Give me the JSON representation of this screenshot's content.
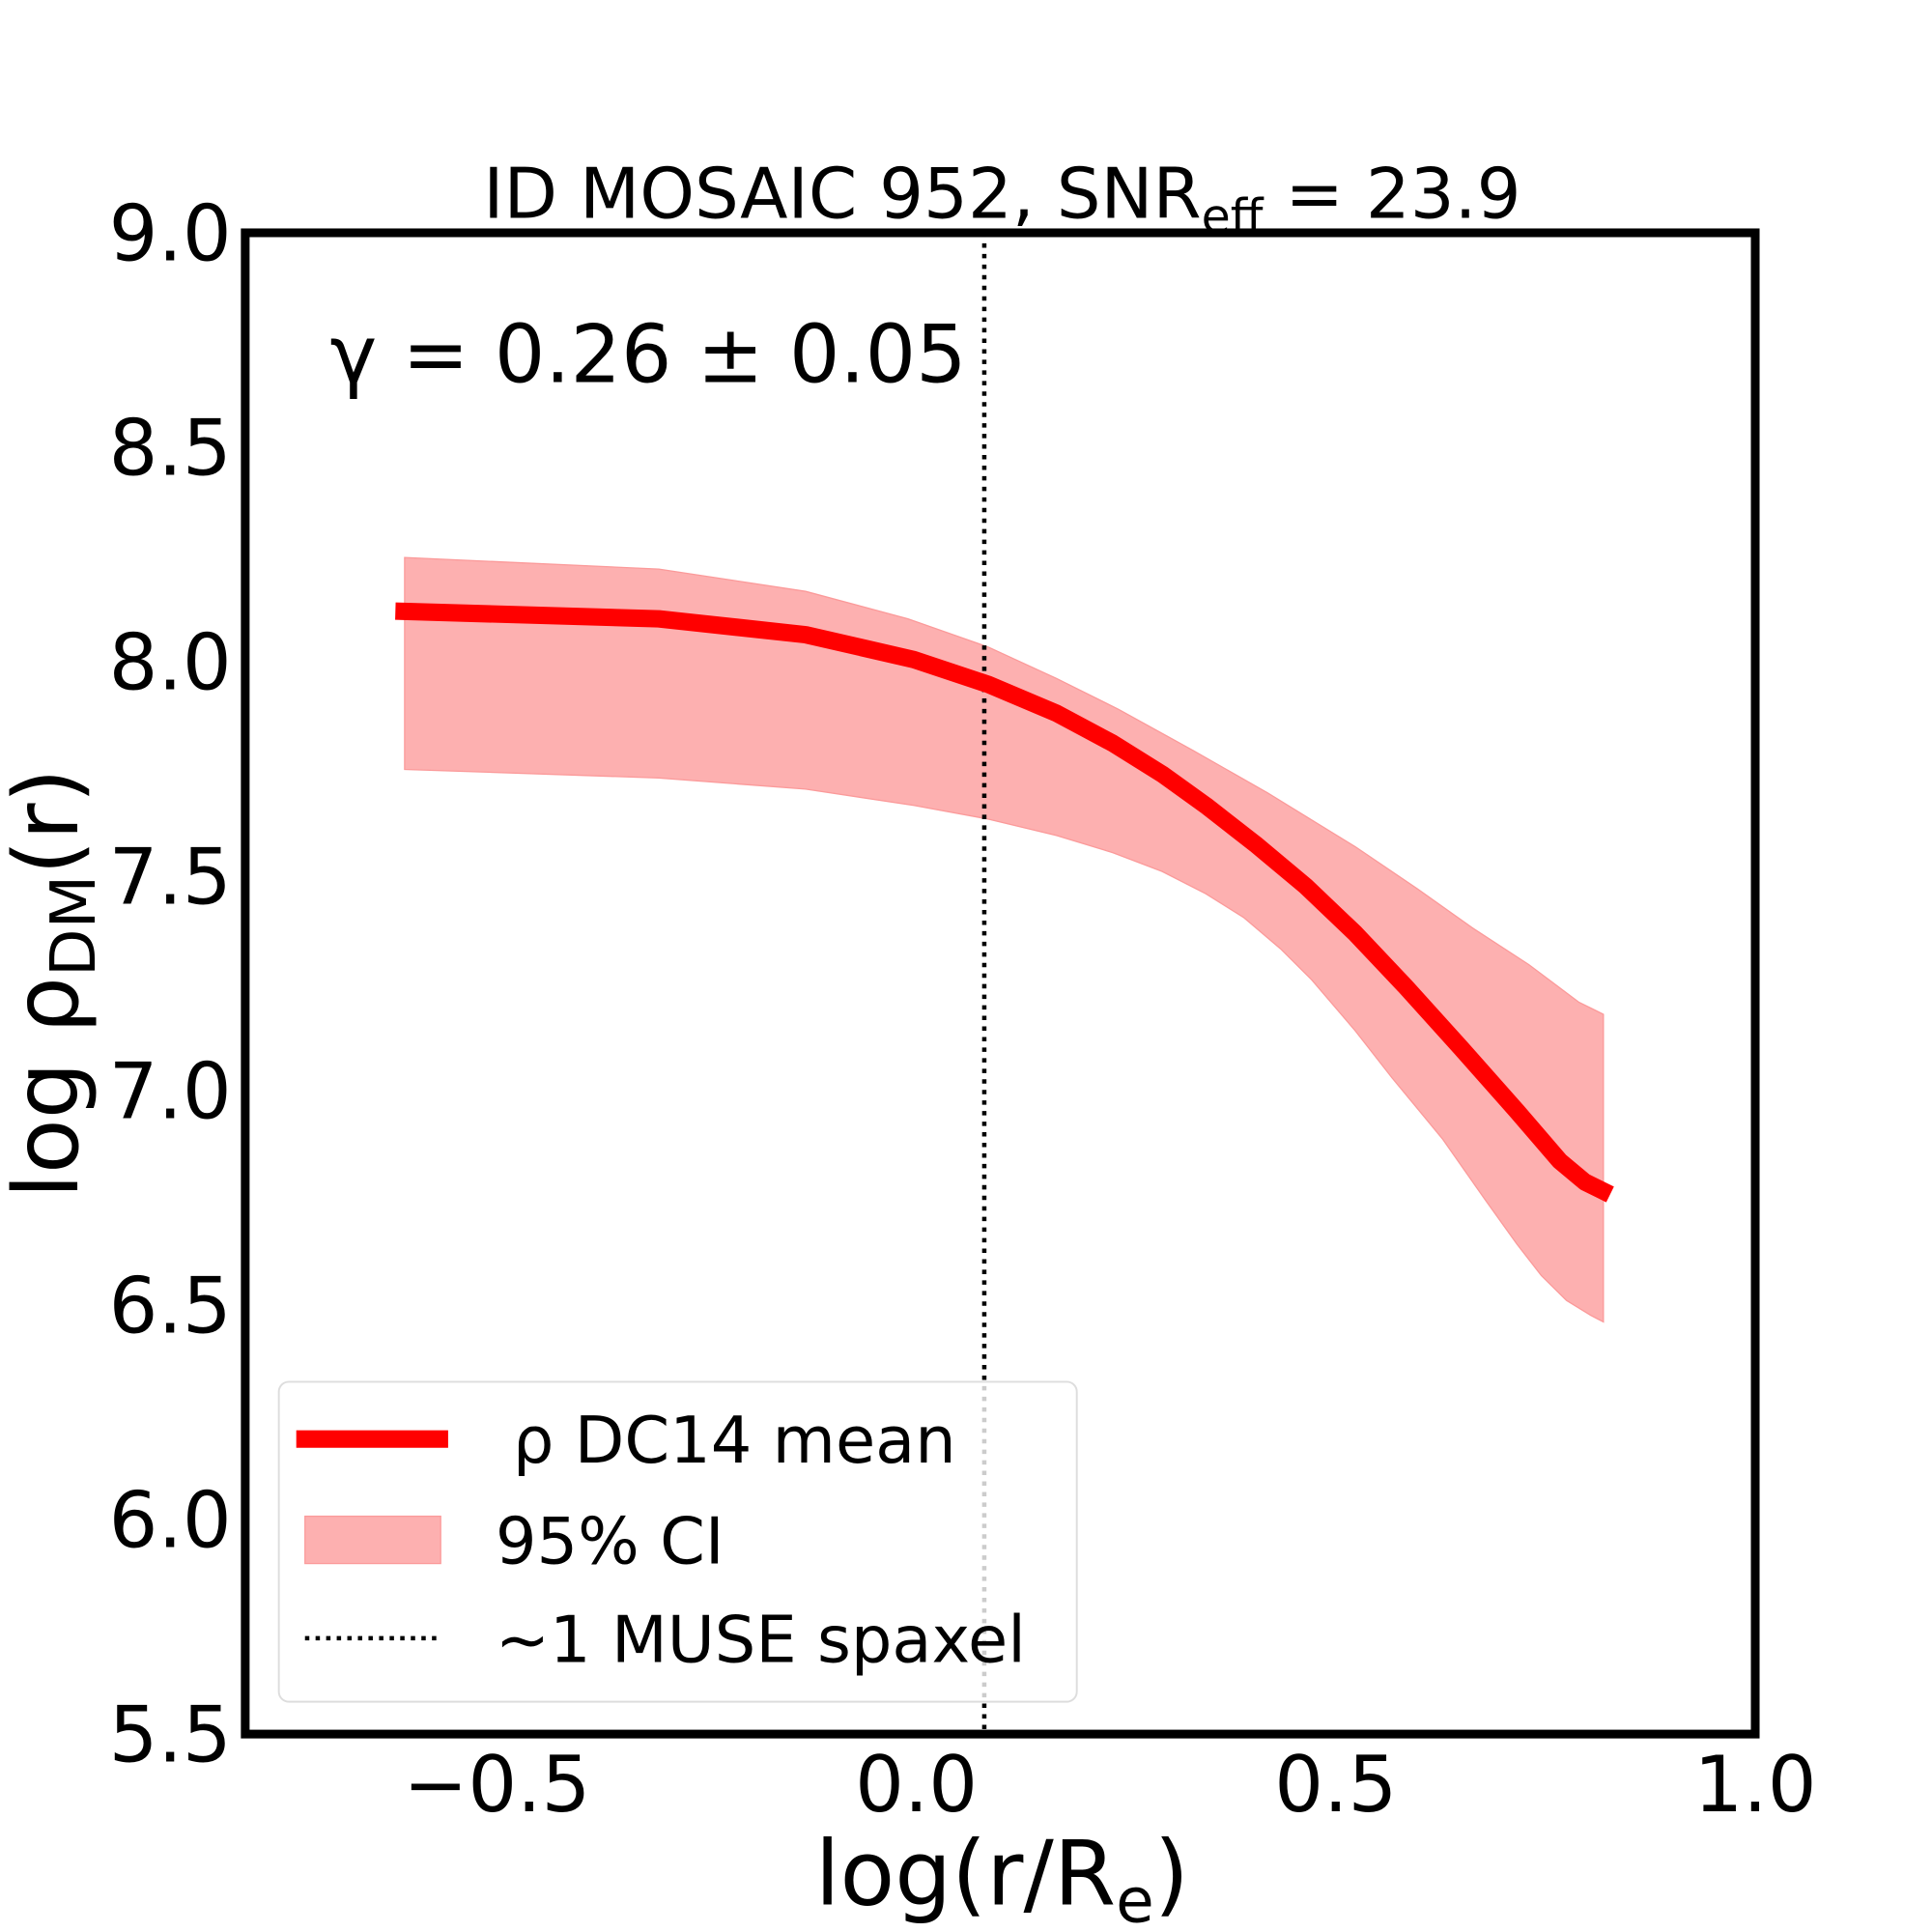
{
  "chart_data": {
    "type": "line",
    "title": "ID MOSAIC 952, SNR",
    "title_sub": "eff",
    "title_suffix": " = 23.9",
    "annotation": "γ = 0.26 ± 0.05",
    "xlabel": "log(r/R",
    "xlabel_sub": "e",
    "xlabel_suffix": ")",
    "ylabel": "log ρ",
    "ylabel_sub": "DM",
    "ylabel_suffix": "(r)",
    "xlim": [
      -0.8,
      1.0
    ],
    "ylim": [
      5.5,
      9.0
    ],
    "xticks": [
      "−0.5",
      "0.0",
      "0.5",
      "1.0"
    ],
    "xtick_values": [
      -0.5,
      0.0,
      0.5,
      1.0
    ],
    "yticks": [
      "5.5",
      "6.0",
      "6.5",
      "7.0",
      "7.5",
      "8.0",
      "8.5",
      "9.0"
    ],
    "ytick_values": [
      5.5,
      6.0,
      6.5,
      7.0,
      7.5,
      8.0,
      8.5,
      9.0
    ],
    "grid": false,
    "legend_position": "bottom-left",
    "series": [
      {
        "name": "ρ DC14 mean",
        "color": "#ff0000",
        "x": [
          -0.621,
          -0.307,
          -0.132,
          -0.003,
          0.086,
          0.167,
          0.234,
          0.293,
          0.345,
          0.404,
          0.464,
          0.523,
          0.582,
          0.649,
          0.716,
          0.767,
          0.797,
          0.827
        ],
        "y": [
          8.118,
          8.1,
          8.063,
          8.005,
          7.947,
          7.88,
          7.81,
          7.738,
          7.665,
          7.575,
          7.477,
          7.367,
          7.245,
          7.1,
          6.952,
          6.836,
          6.787,
          6.758
        ]
      }
    ],
    "band": {
      "name": "95% CI",
      "color": "#fdb0b0",
      "upper": {
        "x": [
          -0.61,
          -0.307,
          -0.132,
          -0.01,
          0.086,
          0.167,
          0.241,
          0.33,
          0.419,
          0.523,
          0.597,
          0.664,
          0.73,
          0.79,
          0.819
        ],
        "y": [
          8.243,
          8.216,
          8.164,
          8.1,
          8.034,
          7.961,
          7.889,
          7.793,
          7.694,
          7.569,
          7.471,
          7.378,
          7.294,
          7.206,
          7.178
        ]
      },
      "lower": {
        "x": [
          -0.61,
          -0.307,
          -0.132,
          -0.003,
          0.086,
          0.167,
          0.234,
          0.293,
          0.345,
          0.39,
          0.434,
          0.471,
          0.523,
          0.567,
          0.627,
          0.679,
          0.716,
          0.745,
          0.775,
          0.804,
          0.819
        ],
        "y": [
          7.749,
          7.729,
          7.703,
          7.665,
          7.633,
          7.595,
          7.555,
          7.511,
          7.459,
          7.404,
          7.331,
          7.259,
          7.14,
          7.03,
          6.888,
          6.743,
          6.642,
          6.569,
          6.511,
          6.476,
          6.461
        ]
      }
    },
    "vline": {
      "name": "~1 MUSE spaxel",
      "x": 0.081,
      "style": "dotted",
      "color": "#000000"
    }
  }
}
